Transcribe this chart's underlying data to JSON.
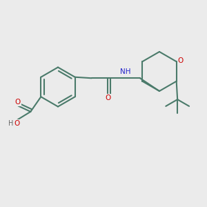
{
  "background_color": "#ebebeb",
  "bond_color": "#4a7a6a",
  "bond_width": 1.5,
  "atom_colors": {
    "O": "#cc0000",
    "N": "#2222cc",
    "H_gray": "#666666"
  },
  "fig_width": 3.0,
  "fig_height": 3.0,
  "dpi": 100
}
